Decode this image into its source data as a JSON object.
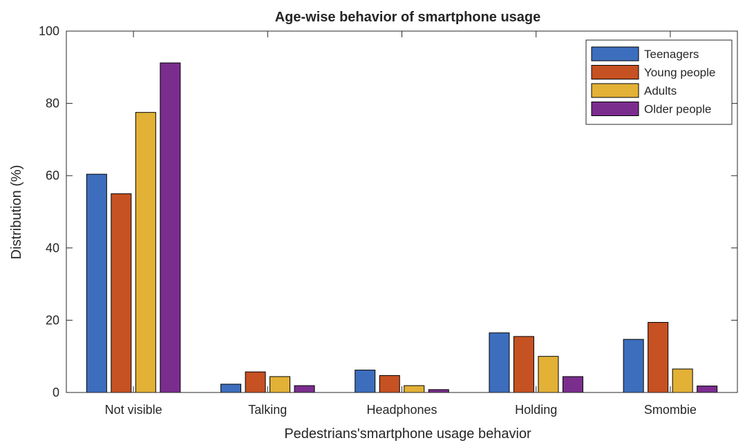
{
  "chart_data": {
    "type": "bar",
    "title": "Age-wise behavior of smartphone usage",
    "xlabel": "Pedestrians'smartphone usage behavior",
    "ylabel": "Distribution (%)",
    "ylim": [
      0,
      100
    ],
    "yticks": [
      0,
      20,
      40,
      60,
      80,
      100
    ],
    "categories": [
      "Not visible",
      "Talking",
      "Headphones",
      "Holding",
      "Smombie"
    ],
    "series": [
      {
        "name": "Teenagers",
        "color": "#3d6ebd",
        "values": [
          60.4,
          2.3,
          6.2,
          16.5,
          14.7
        ]
      },
      {
        "name": "Young people",
        "color": "#c65122",
        "values": [
          55.0,
          5.7,
          4.7,
          15.5,
          19.4
        ]
      },
      {
        "name": "Adults",
        "color": "#e2b136",
        "values": [
          77.5,
          4.4,
          1.9,
          10.0,
          6.5
        ]
      },
      {
        "name": "Older people",
        "color": "#7b2d8e",
        "values": [
          91.2,
          1.9,
          0.8,
          4.4,
          1.8
        ]
      }
    ],
    "grid": false,
    "legend_position": "top-right"
  }
}
